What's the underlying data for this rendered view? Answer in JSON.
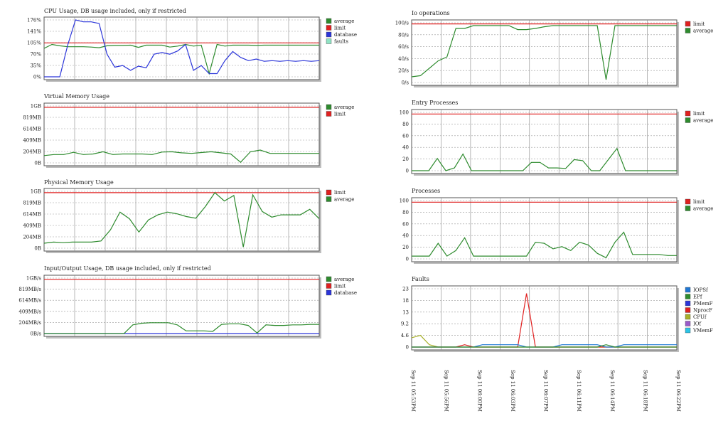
{
  "x_labels": [
    "Sep 11 05:53PM",
    "Sep 11 05:56PM",
    "Sep 11 06:00PM",
    "Sep 11 06:03PM",
    "Sep 11 06:07PM",
    "Sep 11 06:11PM",
    "Sep 11 06:14PM",
    "Sep 11 06:18PM",
    "Sep 11 06:22PM"
  ],
  "colors": {
    "average": "#2e8b2e",
    "limit": "#e02020",
    "database": "#2b35d9",
    "faults": "#8fe3c4"
  },
  "chart_data": [
    {
      "id": "cpu",
      "type": "line",
      "title": "CPU Usage, DB usage included, only if restricted",
      "yticks": [
        "176%",
        "141%",
        "105%",
        "70%",
        "35%",
        "0%"
      ],
      "ylim": [
        0,
        176
      ],
      "legend": [
        {
          "name": "average",
          "color": "#2e8b2e"
        },
        {
          "name": "limit",
          "color": "#e02020"
        },
        {
          "name": "database",
          "color": "#2b35d9"
        },
        {
          "name": "faults",
          "color": "#8fe3c4"
        }
      ],
      "series": [
        {
          "name": "limit",
          "color": "#e02020",
          "values": [
            105,
            105,
            105,
            105,
            105,
            105,
            105,
            105,
            105,
            105,
            105,
            105,
            105,
            105,
            105,
            105,
            105,
            105,
            105,
            105,
            105,
            105,
            105,
            105,
            105,
            105,
            105,
            105,
            105,
            105,
            105,
            105,
            105,
            105,
            105,
            105
          ]
        },
        {
          "name": "average",
          "color": "#2e8b2e",
          "values": [
            88,
            100,
            96,
            93,
            93,
            93,
            92,
            90,
            96,
            97,
            97,
            98,
            91,
            98,
            98,
            98,
            92,
            95,
            100,
            95,
            98,
            10,
            100,
            95,
            98,
            98,
            98,
            97,
            98,
            98,
            98,
            98,
            98,
            98,
            98,
            98
          ]
        },
        {
          "name": "database",
          "color": "#2b35d9",
          "values": [
            0,
            0,
            0,
            98,
            176,
            170,
            170,
            165,
            70,
            30,
            35,
            20,
            33,
            28,
            70,
            75,
            70,
            80,
            100,
            20,
            35,
            10,
            10,
            50,
            78,
            60,
            50,
            55,
            48,
            50,
            48,
            50,
            48,
            50,
            48,
            50
          ]
        }
      ]
    },
    {
      "id": "vmem",
      "type": "line",
      "title": "Virtual Memory Usage",
      "yticks": [
        "1GB",
        "819MB",
        "614MB",
        "409MB",
        "204MB",
        "0B"
      ],
      "ylim": [
        0,
        1024
      ],
      "legend": [
        {
          "name": "average",
          "color": "#2e8b2e"
        },
        {
          "name": "limit",
          "color": "#e02020"
        }
      ],
      "series": [
        {
          "name": "limit",
          "color": "#e02020",
          "values": [
            1000,
            1000
          ]
        },
        {
          "name": "average",
          "color": "#2e8b2e",
          "values": [
            130,
            150,
            150,
            190,
            150,
            160,
            200,
            150,
            160,
            160,
            160,
            150,
            195,
            200,
            180,
            170,
            185,
            200,
            180,
            160,
            10,
            200,
            230,
            170,
            170,
            170,
            170,
            170,
            170
          ]
        }
      ]
    },
    {
      "id": "pmem",
      "type": "line",
      "title": "Physical Memory Usage",
      "yticks": [
        "1GB",
        "819MB",
        "614MB",
        "409MB",
        "204MB",
        "0B"
      ],
      "ylim": [
        0,
        1024
      ],
      "legend": [
        {
          "name": "limit",
          "color": "#e02020"
        },
        {
          "name": "average",
          "color": "#2e8b2e"
        }
      ],
      "series": [
        {
          "name": "limit",
          "color": "#e02020",
          "values": [
            1000,
            1000
          ]
        },
        {
          "name": "average",
          "color": "#2e8b2e",
          "values": [
            90,
            110,
            100,
            110,
            110,
            110,
            130,
            330,
            650,
            530,
            290,
            510,
            600,
            650,
            620,
            570,
            540,
            750,
            1000,
            850,
            950,
            20,
            960,
            660,
            560,
            600,
            600,
            600,
            700,
            530
          ]
        }
      ]
    },
    {
      "id": "io",
      "type": "line",
      "title": "Input/Output Usage, DB usage included, only if restricted",
      "yticks": [
        "1GB/s",
        "819MB/s",
        "614MB/s",
        "409MB/s",
        "204MB/s",
        "0B/s"
      ],
      "ylim": [
        0,
        1024
      ],
      "legend": [
        {
          "name": "average",
          "color": "#2e8b2e"
        },
        {
          "name": "limit",
          "color": "#e02020"
        },
        {
          "name": "database",
          "color": "#2b35d9"
        }
      ],
      "series": [
        {
          "name": "limit",
          "color": "#e02020",
          "values": [
            1000,
            1000
          ]
        },
        {
          "name": "database",
          "color": "#2b35d9",
          "values": [
            0,
            0
          ]
        },
        {
          "name": "average",
          "color": "#2e8b2e",
          "values": [
            0,
            0,
            0,
            0,
            0,
            0,
            0,
            0,
            0,
            0,
            160,
            190,
            200,
            200,
            200,
            160,
            50,
            50,
            50,
            40,
            170,
            180,
            180,
            150,
            10,
            160,
            150,
            150,
            160,
            160,
            170,
            170
          ]
        }
      ]
    },
    {
      "id": "iops",
      "type": "line",
      "title": "Io operations",
      "yticks": [
        "100/s",
        "80/s",
        "60/s",
        "40/s",
        "20/s",
        "0/s"
      ],
      "ylim": [
        0,
        105
      ],
      "legend": [
        {
          "name": "limit",
          "color": "#e02020"
        },
        {
          "name": "average",
          "color": "#2e8b2e"
        }
      ],
      "series": [
        {
          "name": "limit",
          "color": "#e02020",
          "values": [
            103,
            103
          ]
        },
        {
          "name": "average",
          "color": "#2e8b2e",
          "values": [
            10,
            12,
            25,
            38,
            45,
            95,
            95,
            100,
            100,
            100,
            100,
            100,
            93,
            93,
            95,
            98,
            100,
            100,
            100,
            100,
            100,
            100,
            5,
            100,
            100,
            100,
            100,
            100,
            100,
            100,
            100
          ]
        }
      ]
    },
    {
      "id": "ep",
      "type": "line",
      "title": "Entry Processes",
      "yticks": [
        "100",
        "80",
        "60",
        "40",
        "20",
        "0"
      ],
      "ylim": [
        0,
        105
      ],
      "legend": [
        {
          "name": "limit",
          "color": "#e02020"
        },
        {
          "name": "average",
          "color": "#2e8b2e"
        }
      ],
      "series": [
        {
          "name": "limit",
          "color": "#e02020",
          "values": [
            102,
            102
          ]
        },
        {
          "name": "average",
          "color": "#2e8b2e",
          "values": [
            0,
            0,
            0,
            22,
            0,
            5,
            30,
            0,
            0,
            0,
            0,
            0,
            0,
            0,
            15,
            15,
            5,
            5,
            4,
            20,
            18,
            0,
            0,
            20,
            40,
            0,
            0,
            0,
            0,
            0,
            0,
            0
          ]
        }
      ]
    },
    {
      "id": "proc",
      "type": "line",
      "title": "Processes",
      "yticks": [
        "100",
        "80",
        "60",
        "40",
        "20",
        "0"
      ],
      "ylim": [
        0,
        105
      ],
      "legend": [
        {
          "name": "limit",
          "color": "#e02020"
        },
        {
          "name": "average",
          "color": "#2e8b2e"
        }
      ],
      "series": [
        {
          "name": "limit",
          "color": "#e02020",
          "values": [
            102,
            102
          ]
        },
        {
          "name": "average",
          "color": "#2e8b2e",
          "values": [
            5,
            5,
            5,
            28,
            5,
            15,
            38,
            5,
            5,
            5,
            5,
            5,
            5,
            5,
            30,
            28,
            18,
            22,
            15,
            30,
            25,
            10,
            2,
            30,
            48,
            8,
            8,
            8,
            8,
            6,
            6
          ]
        }
      ]
    },
    {
      "id": "faults",
      "type": "line",
      "title": "Faults",
      "yticks": [
        "23",
        "18",
        "13",
        "9.2",
        "4.6",
        "0"
      ],
      "ylim": [
        0,
        25
      ],
      "legend": [
        {
          "name": "IOPSf",
          "color": "#1f77d4"
        },
        {
          "name": "EPf",
          "color": "#2e8b2e"
        },
        {
          "name": "PMemF",
          "color": "#2b35d9"
        },
        {
          "name": "NprocF",
          "color": "#e02020"
        },
        {
          "name": "CPUf",
          "color": "#a8b02a"
        },
        {
          "name": "IOf",
          "color": "#9a5ac9"
        },
        {
          "name": "VMemF",
          "color": "#2bc4e6"
        }
      ],
      "series": [
        {
          "name": "CPUf",
          "color": "#a8b02a",
          "values": [
            4,
            5,
            1,
            0,
            0,
            0,
            0,
            0,
            0,
            0,
            0,
            0,
            0,
            0,
            0,
            0,
            0,
            0,
            0,
            0,
            0,
            0,
            0,
            0,
            0,
            0,
            0,
            0,
            0,
            0,
            0
          ]
        },
        {
          "name": "NprocF",
          "color": "#e02020",
          "values": [
            0,
            0,
            0,
            0,
            0,
            0,
            1,
            0,
            0,
            0,
            0,
            0,
            0,
            23,
            0,
            0,
            0,
            0,
            0,
            0,
            0,
            0,
            0,
            0,
            0,
            0,
            0,
            0,
            0,
            0,
            0
          ]
        },
        {
          "name": "IOPSf",
          "color": "#1f77d4",
          "values": [
            0,
            0,
            0,
            0,
            0,
            0,
            0,
            0,
            1,
            1,
            1,
            1,
            1,
            0,
            0,
            0,
            0,
            1,
            1,
            1,
            1,
            1,
            0,
            0,
            1,
            1,
            1,
            1,
            1,
            1,
            1
          ]
        },
        {
          "name": "EPf",
          "color": "#2e8b2e",
          "values": [
            0,
            0,
            0,
            0,
            0,
            0,
            0,
            0,
            0,
            0,
            0,
            0,
            0,
            0,
            0,
            0,
            0,
            0,
            0,
            0,
            0,
            0,
            1,
            0,
            0,
            0,
            0,
            0,
            0,
            0,
            0
          ]
        }
      ]
    }
  ]
}
